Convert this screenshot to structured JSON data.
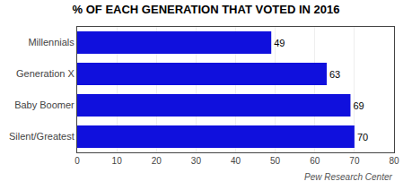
{
  "chart_data": {
    "type": "bar",
    "orientation": "horizontal",
    "title": "% OF EACH GENERATION THAT VOTED IN 2016",
    "categories": [
      "Silent/Greatest",
      "Baby Boomer",
      "Generation X",
      "Millennials"
    ],
    "values": [
      70,
      69,
      63,
      49
    ],
    "value_labels": [
      "70",
      "69",
      "63",
      "49"
    ],
    "data_labels": true,
    "color": "#1010DD",
    "xlim": [
      0,
      80
    ],
    "xticks": [
      0,
      10,
      20,
      30,
      40,
      50,
      60,
      70,
      80
    ],
    "grid": true,
    "annotations": [
      "Pew Research Center"
    ]
  }
}
